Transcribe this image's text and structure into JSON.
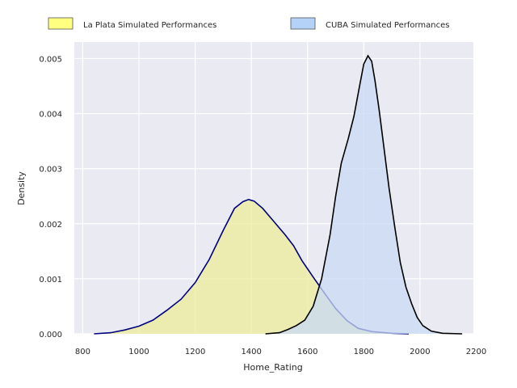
{
  "chart_data": {
    "type": "area",
    "title": "",
    "xlabel": "Home_Rating",
    "ylabel": "Density",
    "xlim": [
      770,
      2190
    ],
    "ylim": [
      0,
      0.0053
    ],
    "xticks": [
      800,
      1000,
      1200,
      1400,
      1600,
      1800,
      2000,
      2200
    ],
    "yticks": [
      0.0,
      0.001,
      0.002,
      0.003,
      0.004,
      0.005
    ],
    "ytick_labels": [
      "0.000",
      "0.001",
      "0.002",
      "0.003",
      "0.004",
      "0.005"
    ],
    "grid": true,
    "legend_position": "top (above plot, two columns)",
    "series": [
      {
        "name": "La Plata Simulated Performances",
        "fill": "#ecec99",
        "line": "#000080",
        "legend_fill": "#ffff80",
        "points": [
          [
            840,
            0.0
          ],
          [
            900,
            2e-05
          ],
          [
            950,
            7e-05
          ],
          [
            1000,
            0.00014
          ],
          [
            1050,
            0.00025
          ],
          [
            1100,
            0.00043
          ],
          [
            1150,
            0.00063
          ],
          [
            1200,
            0.00093
          ],
          [
            1250,
            0.00135
          ],
          [
            1300,
            0.00188
          ],
          [
            1340,
            0.00228
          ],
          [
            1370,
            0.0024
          ],
          [
            1390,
            0.00244
          ],
          [
            1410,
            0.00241
          ],
          [
            1440,
            0.00228
          ],
          [
            1480,
            0.00204
          ],
          [
            1520,
            0.0018
          ],
          [
            1550,
            0.0016
          ],
          [
            1580,
            0.00133
          ],
          [
            1620,
            0.00103
          ],
          [
            1660,
            0.00074
          ],
          [
            1700,
            0.00046
          ],
          [
            1740,
            0.00024
          ],
          [
            1780,
            0.0001
          ],
          [
            1830,
            4e-05
          ],
          [
            1900,
            1e-05
          ],
          [
            1960,
            0.0
          ]
        ]
      },
      {
        "name": "CUBA Simulated Performances",
        "fill": "#c8daf4",
        "line": "#000000",
        "legend_fill": "#b4d2f8",
        "points": [
          [
            1450,
            0.0
          ],
          [
            1500,
            2e-05
          ],
          [
            1530,
            8e-05
          ],
          [
            1560,
            0.00015
          ],
          [
            1590,
            0.00025
          ],
          [
            1620,
            0.0005
          ],
          [
            1650,
            0.001
          ],
          [
            1680,
            0.0018
          ],
          [
            1700,
            0.0025
          ],
          [
            1720,
            0.0031
          ],
          [
            1745,
            0.00355
          ],
          [
            1765,
            0.00395
          ],
          [
            1785,
            0.0045
          ],
          [
            1800,
            0.0049
          ],
          [
            1815,
            0.00505
          ],
          [
            1828,
            0.00495
          ],
          [
            1840,
            0.0046
          ],
          [
            1855,
            0.00405
          ],
          [
            1870,
            0.00345
          ],
          [
            1890,
            0.00265
          ],
          [
            1910,
            0.00195
          ],
          [
            1930,
            0.0013
          ],
          [
            1950,
            0.00085
          ],
          [
            1970,
            0.00055
          ],
          [
            1990,
            0.0003
          ],
          [
            2010,
            0.00015
          ],
          [
            2040,
            5e-05
          ],
          [
            2080,
            1e-05
          ],
          [
            2150,
            0.0
          ]
        ]
      }
    ]
  }
}
